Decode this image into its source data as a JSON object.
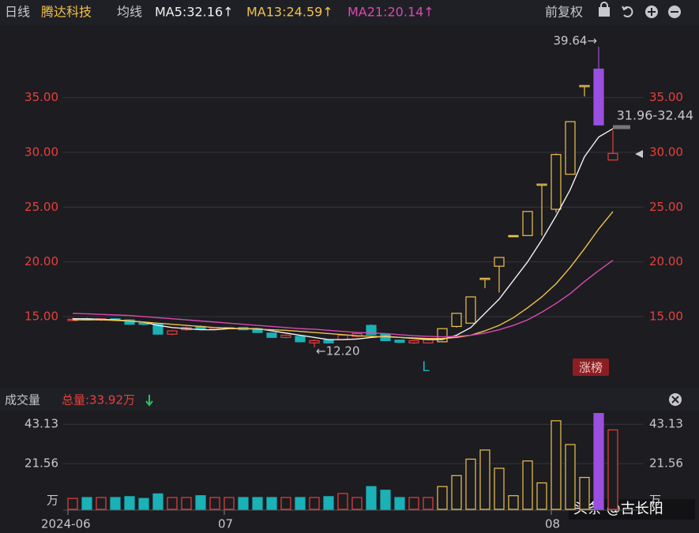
{
  "header": {
    "period": "日线",
    "stock": "腾达科技",
    "ma_title": "均线",
    "adjust": "前复权"
  },
  "volume_header": {
    "title": "成交量",
    "total": "总量:33.92万"
  },
  "chart_data": [
    {
      "type": "candlestick",
      "categories": [
        "2024-06",
        null,
        null,
        null,
        null,
        null,
        null,
        null,
        null,
        null,
        null,
        "07",
        null,
        null,
        null,
        null,
        null,
        null,
        null,
        null,
        null,
        null,
        null,
        null,
        null,
        null,
        null,
        null,
        null,
        null,
        null,
        null,
        null,
        null,
        "08",
        null,
        null,
        null,
        null
      ],
      "open": [
        14.7,
        14.8,
        14.7,
        14.8,
        14.7,
        14.4,
        14.3,
        13.4,
        13.8,
        14.1,
        13.85,
        13.9,
        14.0,
        13.9,
        13.5,
        13.1,
        13.2,
        12.6,
        12.85,
        12.9,
        13.2,
        14.2,
        13.4,
        12.85,
        12.6,
        12.6,
        12.7,
        14.1,
        14.4,
        18.4,
        19.6,
        22.4,
        22.4,
        27.0,
        24.8,
        28.0,
        36.0,
        37.6,
        29.3
      ],
      "high": [
        14.9,
        14.9,
        14.85,
        14.85,
        14.75,
        14.45,
        14.35,
        13.75,
        14.1,
        14.2,
        14.05,
        14.05,
        14.05,
        13.95,
        13.55,
        13.35,
        13.25,
        12.9,
        12.9,
        13.35,
        13.5,
        14.3,
        13.45,
        12.9,
        12.85,
        12.95,
        13.95,
        15.3,
        16.8,
        18.5,
        20.4,
        22.4,
        24.6,
        27.1,
        29.9,
        32.8,
        36.1,
        39.64,
        32.0
      ],
      "low": [
        14.6,
        14.65,
        14.6,
        14.6,
        14.25,
        14.2,
        13.35,
        13.3,
        13.7,
        13.8,
        13.8,
        13.85,
        13.75,
        13.5,
        13.05,
        13.0,
        12.65,
        12.2,
        12.55,
        12.85,
        13.1,
        13.3,
        12.75,
        12.6,
        12.5,
        12.55,
        12.65,
        14.0,
        14.4,
        17.6,
        17.2,
        22.4,
        22.4,
        22.4,
        24.5,
        28.0,
        35.1,
        32.5,
        29.3
      ],
      "close": [
        14.75,
        14.7,
        14.8,
        14.7,
        14.3,
        14.3,
        13.4,
        13.7,
        14.0,
        13.85,
        14.0,
        14.0,
        13.8,
        13.55,
        13.1,
        13.3,
        12.7,
        12.8,
        12.6,
        13.3,
        13.45,
        13.35,
        12.8,
        12.65,
        12.8,
        12.9,
        13.9,
        15.3,
        16.8,
        18.5,
        20.4,
        22.4,
        24.6,
        27.1,
        29.8,
        32.8,
        36.1,
        32.5,
        29.9
      ],
      "colors": [
        "#e8403c",
        "#1ab1b7",
        "#e8403c",
        "#1ab1b7",
        "#1ab1b7",
        "#1ab1b7",
        "#1ab1b7",
        "#e8403c",
        "#e8403c",
        "#1ab1b7",
        "#e8403c",
        "#e8403c",
        "#1ab1b7",
        "#1ab1b7",
        "#1ab1b7",
        "#e8403c",
        "#1ab1b7",
        "#e8403c",
        "#1ab1b7",
        "#e8403c",
        "#e8403c",
        "#1ab1b7",
        "#1ab1b7",
        "#1ab1b7",
        "#e8403c",
        "#e8403c",
        "#f0c24a",
        "#f0c24a",
        "#f0c24a",
        "#f0c24a",
        "#f0c24a",
        "#f0c24a",
        "#f0c24a",
        "#f0c24a",
        "#f0c24a",
        "#f0c24a",
        "#f0c24a",
        "#9b4fe0",
        "#e8403c"
      ],
      "series": [
        {
          "name": "MA5:32.16↑",
          "color": "#f2f2f2",
          "values": [
            14.8,
            14.8,
            14.75,
            14.7,
            14.6,
            14.5,
            14.2,
            14.0,
            13.9,
            13.8,
            13.8,
            13.9,
            13.9,
            13.9,
            13.7,
            13.5,
            13.3,
            13.1,
            12.9,
            12.9,
            12.95,
            13.1,
            13.2,
            13.1,
            13.0,
            12.9,
            12.9,
            13.3,
            14.0,
            15.3,
            16.6,
            18.3,
            20.0,
            22.0,
            24.2,
            26.6,
            29.6,
            31.4,
            32.16
          ]
        },
        {
          "name": "MA13:24.59↑",
          "color": "#f0c24a",
          "values": [
            14.7,
            14.7,
            14.7,
            14.65,
            14.6,
            14.5,
            14.4,
            14.3,
            14.2,
            14.1,
            14.0,
            13.95,
            13.9,
            13.85,
            13.8,
            13.75,
            13.65,
            13.55,
            13.45,
            13.35,
            13.25,
            13.2,
            13.15,
            13.1,
            13.05,
            13.0,
            13.0,
            13.1,
            13.3,
            13.7,
            14.2,
            14.9,
            15.8,
            16.8,
            18.0,
            19.5,
            21.2,
            23.0,
            24.59
          ]
        },
        {
          "name": "MA21:20.14↑",
          "color": "#d94ab0",
          "values": [
            15.3,
            15.25,
            15.2,
            15.15,
            15.1,
            15.0,
            14.9,
            14.8,
            14.7,
            14.6,
            14.5,
            14.4,
            14.3,
            14.2,
            14.1,
            14.0,
            13.9,
            13.85,
            13.75,
            13.65,
            13.55,
            13.5,
            13.45,
            13.35,
            13.25,
            13.2,
            13.15,
            13.2,
            13.3,
            13.5,
            13.8,
            14.2,
            14.7,
            15.4,
            16.2,
            17.1,
            18.2,
            19.2,
            20.14
          ]
        }
      ],
      "ylim": [
        9.3,
        41.17
      ],
      "yticks": [
        {
          "value": 15,
          "label": "15.00"
        },
        {
          "value": 20,
          "label": "20.00"
        },
        {
          "value": 25,
          "label": "25.00"
        },
        {
          "value": 30,
          "label": "30.00"
        },
        {
          "value": 35,
          "label": "35.00"
        }
      ],
      "grid": true,
      "annotations": [
        "39.64→",
        "←12.20",
        "31.96-32.44",
        "L",
        "涨榜"
      ]
    },
    {
      "type": "bar",
      "values": [
        2.5,
        3,
        3,
        3,
        3.5,
        2.5,
        5,
        3,
        3,
        4,
        3,
        3,
        3,
        3,
        3,
        3,
        3,
        3,
        3.5,
        5.2,
        3,
        9,
        7,
        3,
        3,
        3,
        9,
        15,
        24,
        29,
        19,
        4,
        23,
        11,
        45,
        32,
        14,
        49,
        40
      ],
      "colors": [
        "#e8403c",
        "#1ab1b7",
        "#e8403c",
        "#1ab1b7",
        "#1ab1b7",
        "#1ab1b7",
        "#1ab1b7",
        "#e8403c",
        "#e8403c",
        "#1ab1b7",
        "#e8403c",
        "#e8403c",
        "#1ab1b7",
        "#1ab1b7",
        "#1ab1b7",
        "#e8403c",
        "#1ab1b7",
        "#e8403c",
        "#1ab1b7",
        "#e8403c",
        "#e8403c",
        "#1ab1b7",
        "#1ab1b7",
        "#1ab1b7",
        "#e8403c",
        "#e8403c",
        "#f0c24a",
        "#f0c24a",
        "#f0c24a",
        "#f0c24a",
        "#f0c24a",
        "#f0c24a",
        "#f0c24a",
        "#f0c24a",
        "#f0c24a",
        "#f0c24a",
        "#f0c24a",
        "#9b4fe0",
        "#e8403c"
      ],
      "ylim": [
        0,
        49.7
      ],
      "yticks": [
        21.56,
        43.13
      ],
      "unit": "万",
      "grid": true
    }
  ],
  "watermark": "头条 @古长阳"
}
